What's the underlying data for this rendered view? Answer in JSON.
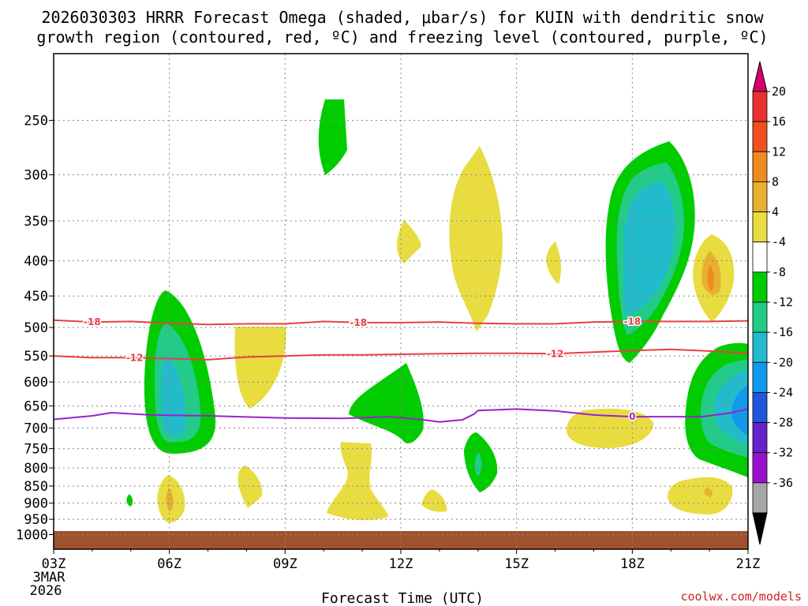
{
  "header": {
    "title_line1": "2026030303 HRRR Forecast Omega (shaded, μbar/s) for KUIN with dendritic snow",
    "title_line2": "growth region (contoured, red, ºC) and freezing level (contoured, purple, ºC)"
  },
  "footer": {
    "credit": "coolwx.com/models"
  },
  "chart_data": {
    "type": "heatmap",
    "title": "2026030303 HRRR Forecast Omega (shaded, μbar/s) for KUIN with dendritic snow growth region (contoured, red, ºC) and freezing level (contoured, purple, ºC)",
    "xlabel": "Forecast Time (UTC)",
    "ylabel": "",
    "x_range_hours": [
      3,
      21
    ],
    "y_range_hpa": [
      200,
      1050
    ],
    "y_scale": "log",
    "x_ticks": [
      {
        "hour": 3,
        "label": "03Z",
        "sub1": "3MAR",
        "sub2": "2026"
      },
      {
        "hour": 6,
        "label": "06Z"
      },
      {
        "hour": 9,
        "label": "09Z"
      },
      {
        "hour": 12,
        "label": "12Z"
      },
      {
        "hour": 15,
        "label": "15Z"
      },
      {
        "hour": 18,
        "label": "18Z"
      },
      {
        "hour": 21,
        "label": "21Z"
      }
    ],
    "y_ticks": [
      250,
      300,
      350,
      400,
      450,
      500,
      550,
      600,
      650,
      700,
      750,
      800,
      850,
      900,
      950,
      1000
    ],
    "colorbar": {
      "labels": [
        "20",
        "16",
        "12",
        "8",
        "4",
        "-4",
        "-8",
        "-12",
        "-16",
        "-20",
        "-24",
        "-28",
        "-32",
        "-36"
      ],
      "colors": [
        "#d8006a",
        "#e83030",
        "#f05020",
        "#f08a20",
        "#e8b030",
        "#e8dc40",
        "#ffffff",
        "#00cc00",
        "#22cc88",
        "#22bbcc",
        "#1199ee",
        "#2255dd",
        "#6622cc",
        "#9911cc",
        "#a6a6a6",
        "#000000"
      ]
    },
    "contours": [
      {
        "name": "-18",
        "color": "#e84040",
        "labels_at_hours": [
          4.0,
          10.9,
          18.0
        ],
        "points": [
          [
            3.0,
            488
          ],
          [
            4.0,
            491
          ],
          [
            5.0,
            490
          ],
          [
            6.0,
            493
          ],
          [
            7.0,
            495
          ],
          [
            8.0,
            494
          ],
          [
            9.0,
            494
          ],
          [
            10.0,
            490
          ],
          [
            11.0,
            492
          ],
          [
            12.0,
            492
          ],
          [
            13.0,
            491
          ],
          [
            14.0,
            493
          ],
          [
            15.0,
            494
          ],
          [
            16.0,
            494
          ],
          [
            17.0,
            491
          ],
          [
            18.0,
            490
          ],
          [
            19.0,
            490
          ],
          [
            20.0,
            490
          ],
          [
            21.0,
            489
          ]
        ]
      },
      {
        "name": "-12",
        "color": "#e84040",
        "labels_at_hours": [
          5.1,
          16.0
        ],
        "points": [
          [
            3.0,
            550
          ],
          [
            4.0,
            553
          ],
          [
            5.0,
            553
          ],
          [
            6.0,
            555
          ],
          [
            7.0,
            557
          ],
          [
            8.0,
            552
          ],
          [
            9.0,
            550
          ],
          [
            10.0,
            548
          ],
          [
            11.0,
            548
          ],
          [
            12.0,
            547
          ],
          [
            13.0,
            546
          ],
          [
            14.0,
            545
          ],
          [
            15.0,
            545
          ],
          [
            16.0,
            546
          ],
          [
            17.0,
            543
          ],
          [
            18.0,
            540
          ],
          [
            19.0,
            538
          ],
          [
            20.0,
            541
          ],
          [
            21.0,
            545
          ]
        ]
      },
      {
        "name": "0",
        "color": "#9922cc",
        "labels_at_hours": [
          18.0
        ],
        "points": [
          [
            3.0,
            680
          ],
          [
            4.0,
            672
          ],
          [
            4.5,
            665
          ],
          [
            5.5,
            670
          ],
          [
            7.0,
            672
          ],
          [
            9.0,
            677
          ],
          [
            10.5,
            678
          ],
          [
            11.7,
            674
          ],
          [
            12.5,
            680
          ],
          [
            13.0,
            686
          ],
          [
            13.6,
            681
          ],
          [
            13.9,
            668
          ],
          [
            14.0,
            660
          ],
          [
            15.0,
            657
          ],
          [
            16.0,
            661
          ],
          [
            17.0,
            670
          ],
          [
            18.0,
            674
          ],
          [
            19.0,
            674
          ],
          [
            19.8,
            674
          ],
          [
            20.5,
            666
          ],
          [
            21.0,
            657
          ]
        ]
      }
    ],
    "omega_regions_approx": [
      {
        "level": "-4",
        "color": "#00cc00",
        "center_hour": 6.0,
        "top_hpa": 445,
        "bottom_hpa": 770
      },
      {
        "level": "-8",
        "color": "#22cc88",
        "center_hour": 6.0,
        "top_hpa": 530,
        "bottom_hpa": 730
      },
      {
        "level": "-12",
        "color": "#22bbcc",
        "center_hour": 6.0,
        "top_hpa": 600,
        "bottom_hpa": 680
      },
      {
        "level": "4",
        "color": "#e8dc40",
        "center_hour": 8.5,
        "top_hpa": 505,
        "bottom_hpa": 665
      },
      {
        "level": "-4",
        "color": "#00cc00",
        "center_hour": 10.3,
        "top_hpa": 232,
        "bottom_hpa": 305
      },
      {
        "level": "-4",
        "color": "#00cc00",
        "center_hour": 11.7,
        "top_hpa": 575,
        "bottom_hpa": 730
      },
      {
        "level": "4",
        "color": "#e8dc40",
        "center_hour": 14.0,
        "top_hpa": 280,
        "bottom_hpa": 535
      },
      {
        "level": "-4",
        "color": "#00cc00",
        "center_hour": 18.5,
        "top_hpa": 275,
        "bottom_hpa": 570
      },
      {
        "level": "-8",
        "color": "#22cc88",
        "center_hour": 18.5,
        "top_hpa": 295,
        "bottom_hpa": 540
      },
      {
        "level": "-12",
        "color": "#22bbcc",
        "center_hour": 18.5,
        "top_hpa": 320,
        "bottom_hpa": 500
      },
      {
        "level": "4",
        "color": "#e8dc40",
        "center_hour": 19.8,
        "top_hpa": 375,
        "bottom_hpa": 500
      },
      {
        "level": "8",
        "color": "#e8b030",
        "center_hour": 19.8,
        "top_hpa": 400,
        "bottom_hpa": 480
      },
      {
        "level": "-4",
        "color": "#00cc00",
        "center_hour": 20.3,
        "top_hpa": 540,
        "bottom_hpa": 790
      },
      {
        "level": "4",
        "color": "#e8dc40",
        "center_hour": 17.5,
        "top_hpa": 660,
        "bottom_hpa": 760
      },
      {
        "level": "4",
        "color": "#e8dc40",
        "center_hour": 19.9,
        "top_hpa": 860,
        "bottom_hpa": 950
      },
      {
        "level": "4",
        "color": "#e8dc40",
        "center_hour": 6.0,
        "top_hpa": 860,
        "bottom_hpa": 960
      }
    ]
  }
}
